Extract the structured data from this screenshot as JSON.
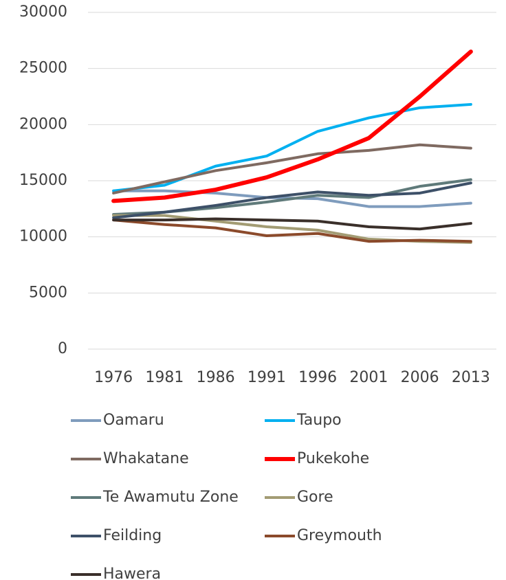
{
  "chart_data": {
    "type": "line",
    "categories": [
      "1976",
      "1981",
      "1986",
      "1991",
      "1996",
      "2001",
      "2006",
      "2013"
    ],
    "ylim": [
      0,
      30000
    ],
    "yticks": [
      0,
      5000,
      10000,
      15000,
      20000,
      25000,
      30000
    ],
    "grid": true,
    "legend": "bottom",
    "series": [
      {
        "name": "Oamaru",
        "color": "#7f9cbd",
        "line_width": 4,
        "values": [
          14100,
          14100,
          13900,
          13500,
          13400,
          12700,
          12700,
          13000
        ]
      },
      {
        "name": "Taupo",
        "color": "#00b0f0",
        "line_width": 4,
        "values": [
          14100,
          14600,
          16300,
          17200,
          19400,
          20600,
          21500,
          21800
        ]
      },
      {
        "name": "Whakatane",
        "color": "#7f6a61",
        "line_width": 4,
        "values": [
          13900,
          14900,
          15900,
          16600,
          17400,
          17700,
          18200,
          17900
        ]
      },
      {
        "name": "Pukekohe",
        "color": "#ff0000",
        "line_width": 6,
        "values": [
          13200,
          13500,
          14200,
          15300,
          16900,
          18800,
          22500,
          26500
        ]
      },
      {
        "name": "Te Awamutu Zone",
        "color": "#5f7a7a",
        "line_width": 4,
        "values": [
          12000,
          12200,
          12600,
          13100,
          13700,
          13500,
          14500,
          15100
        ]
      },
      {
        "name": "Gore",
        "color": "#a39c74",
        "line_width": 4,
        "values": [
          11900,
          11900,
          11400,
          10900,
          10600,
          9800,
          9600,
          9500
        ]
      },
      {
        "name": "Feilding",
        "color": "#3d5068",
        "line_width": 4,
        "values": [
          11700,
          12200,
          12800,
          13500,
          14000,
          13700,
          13900,
          14800
        ]
      },
      {
        "name": "Greymouth",
        "color": "#8b4a2b",
        "line_width": 4,
        "values": [
          11500,
          11100,
          10800,
          10100,
          10300,
          9600,
          9700,
          9600
        ]
      },
      {
        "name": "Hawera",
        "color": "#3a2f2a",
        "line_width": 4,
        "values": [
          11500,
          11500,
          11600,
          11500,
          11400,
          10900,
          10700,
          11200
        ]
      }
    ]
  }
}
